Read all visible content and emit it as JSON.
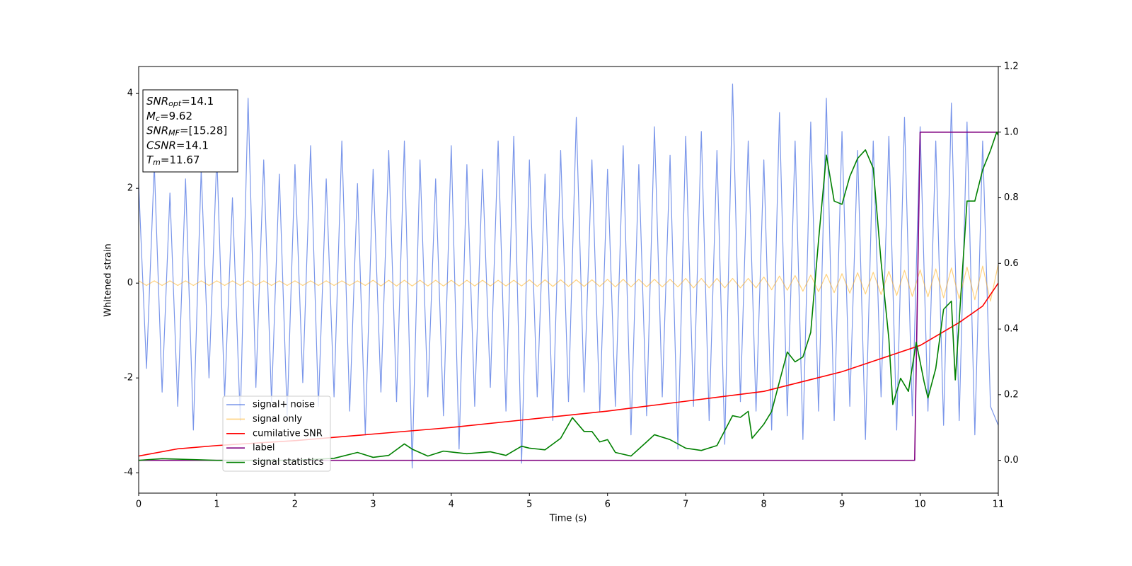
{
  "chart_data": {
    "type": "line",
    "xlabel": "Time (s)",
    "ylabel": "Whitened strain",
    "xlim": [
      0,
      11
    ],
    "ylim": [
      -4.43,
      4.57
    ],
    "y2lim": [
      -0.1,
      1.2
    ],
    "xticks": [
      0,
      1,
      2,
      3,
      4,
      5,
      6,
      7,
      8,
      9,
      10,
      11
    ],
    "yticks": [
      -4,
      -2,
      0,
      2,
      4
    ],
    "y2ticks": [
      {
        "value": 0,
        "label": "0.0"
      },
      0.2,
      0.4,
      0.6,
      0.8,
      {
        "value": 1,
        "label": "1.0"
      },
      1.2
    ],
    "legend": "lower left",
    "annotation": [
      {
        "main": "SNR",
        "sub": "opt",
        "rest": "=14.1"
      },
      {
        "main": "M",
        "sub": "c",
        "rest": "=9.62"
      },
      {
        "main": "SNR",
        "sub": "MF",
        "rest": "=[15.28]"
      },
      {
        "main": "CSNR",
        "rest": "=14.1"
      },
      {
        "main": "T",
        "sub": "m",
        "rest": "=11.67"
      }
    ],
    "x": [
      0,
      0.1,
      0.2,
      0.3,
      0.4,
      0.5,
      0.6,
      0.7,
      0.8,
      0.9,
      1,
      1.1,
      1.2,
      1.3,
      1.4,
      1.5,
      1.6,
      1.7,
      1.8,
      1.9,
      2,
      2.1,
      2.2,
      2.3,
      2.4,
      2.5,
      2.6,
      2.7,
      2.8,
      2.9,
      3,
      3.1,
      3.2,
      3.3,
      3.4,
      3.5,
      3.6,
      3.7,
      3.8,
      3.9,
      4,
      4.1,
      4.2,
      4.3,
      4.4,
      4.5,
      4.6,
      4.7,
      4.8,
      4.9,
      5,
      5.1,
      5.2,
      5.3,
      5.4,
      5.5,
      5.6,
      5.7,
      5.8,
      5.9,
      6,
      6.1,
      6.2,
      6.3,
      6.4,
      6.5,
      6.6,
      6.7,
      6.8,
      6.9,
      7,
      7.1,
      7.2,
      7.3,
      7.4,
      7.5,
      7.6,
      7.7,
      7.8,
      7.9,
      8,
      8.1,
      8.2,
      8.3,
      8.4,
      8.5,
      8.6,
      8.7,
      8.8,
      8.9,
      9,
      9.1,
      9.2,
      9.3,
      9.4,
      9.5,
      9.6,
      9.7,
      9.8,
      9.9,
      10,
      10.1,
      10.2,
      10.3,
      10.4,
      10.5,
      10.6,
      10.7,
      10.8,
      10.9,
      11
    ],
    "series": [
      {
        "name": "signal+ noise",
        "color": "#4169e1",
        "opacity": 0.7,
        "values": [
          2.1,
          -1.8,
          2.5,
          -2.3,
          1.9,
          -2.6,
          2.2,
          -3.1,
          2.4,
          -2.0,
          2.7,
          -2.4,
          1.8,
          -2.9,
          3.9,
          -2.2,
          2.6,
          -2.5,
          2.3,
          -2.8,
          2.5,
          -2.1,
          2.9,
          -2.6,
          2.2,
          -2.4,
          3.0,
          -2.7,
          2.1,
          -3.2,
          2.4,
          -2.3,
          2.8,
          -2.5,
          3.0,
          -3.9,
          2.6,
          -2.4,
          2.2,
          -2.8,
          2.9,
          -3.5,
          2.5,
          -2.6,
          2.4,
          -2.2,
          3.0,
          -2.7,
          3.1,
          -3.8,
          2.6,
          -2.4,
          2.3,
          -2.9,
          2.8,
          -2.5,
          3.5,
          -2.3,
          2.6,
          -2.7,
          2.4,
          -2.6,
          2.9,
          -3.2,
          2.5,
          -2.8,
          3.3,
          -2.4,
          2.7,
          -3.5,
          3.1,
          -2.6,
          3.2,
          -2.9,
          2.8,
          -3.4,
          4.2,
          -2.5,
          3.0,
          -2.7,
          2.6,
          -3.1,
          3.6,
          -2.8,
          3.0,
          -3.3,
          3.4,
          -2.7,
          3.9,
          -2.9,
          3.2,
          -2.6,
          2.8,
          -3.3,
          3.0,
          -2.4,
          3.1,
          -3.1,
          3.5,
          -2.8,
          3.3,
          -2.7,
          3.0,
          -3.0,
          3.8,
          -2.9,
          3.4,
          -3.2,
          3.0,
          -2.6,
          -3.0
        ]
      },
      {
        "name": "signal only",
        "color": "#ffa500",
        "opacity": 0.5,
        "values": [
          0.05,
          -0.05,
          0.05,
          -0.05,
          0.05,
          -0.05,
          0.05,
          -0.05,
          0.05,
          -0.05,
          0.05,
          -0.05,
          0.05,
          -0.05,
          0.05,
          -0.05,
          0.05,
          -0.05,
          0.05,
          -0.05,
          0.05,
          -0.05,
          0.05,
          -0.05,
          0.05,
          -0.05,
          0.05,
          -0.05,
          0.05,
          -0.05,
          0.06,
          -0.06,
          0.06,
          -0.06,
          0.06,
          -0.06,
          0.06,
          -0.06,
          0.06,
          -0.06,
          0.06,
          -0.06,
          0.06,
          -0.06,
          0.06,
          -0.06,
          0.06,
          -0.06,
          0.06,
          -0.06,
          0.07,
          -0.07,
          0.07,
          -0.07,
          0.07,
          -0.07,
          0.07,
          -0.07,
          0.07,
          -0.07,
          0.08,
          -0.08,
          0.08,
          -0.08,
          0.08,
          -0.08,
          0.08,
          -0.08,
          0.08,
          -0.08,
          0.1,
          -0.1,
          0.1,
          -0.1,
          0.1,
          -0.1,
          0.1,
          -0.1,
          0.1,
          -0.1,
          0.13,
          -0.14,
          0.15,
          -0.15,
          0.16,
          -0.17,
          0.17,
          -0.18,
          0.19,
          -0.2,
          0.2,
          -0.21,
          0.22,
          -0.23,
          0.23,
          -0.24,
          0.25,
          -0.26,
          0.27,
          -0.28,
          0.28,
          -0.29,
          0.3,
          -0.31,
          0.32,
          -0.33,
          0.34,
          -0.35,
          0.36,
          -0.38,
          0.4
        ]
      },
      {
        "name": "cumilative SNR",
        "color": "#ff0000",
        "axis": "y2",
        "x": [
          0,
          0.5,
          1,
          2,
          3,
          4,
          5,
          6,
          7,
          8,
          9,
          9.5,
          10,
          10.5,
          10.8,
          11
        ],
        "values": [
          0.013,
          0.035,
          0.045,
          0.06,
          0.08,
          0.1,
          0.125,
          0.15,
          0.18,
          0.21,
          0.27,
          0.31,
          0.35,
          0.42,
          0.47,
          0.54
        ]
      },
      {
        "name": "label",
        "color": "#800080",
        "axis": "y2",
        "x": [
          0,
          9.93,
          10,
          11
        ],
        "values": [
          0,
          0,
          1,
          1
        ]
      },
      {
        "name": "signal statistics",
        "color": "#008000",
        "axis": "y2",
        "x": [
          0,
          0.3,
          1,
          2,
          2.5,
          2.8,
          3,
          3.2,
          3.4,
          3.5,
          3.7,
          3.9,
          4.2,
          4.5,
          4.7,
          4.9,
          5,
          5.2,
          5.4,
          5.55,
          5.7,
          5.8,
          5.9,
          6,
          6.1,
          6.3,
          6.5,
          6.6,
          6.8,
          7,
          7.2,
          7.4,
          7.6,
          7.7,
          7.8,
          7.85,
          8,
          8.1,
          8.2,
          8.3,
          8.4,
          8.5,
          8.6,
          8.7,
          8.8,
          8.9,
          9,
          9.1,
          9.2,
          9.3,
          9.4,
          9.5,
          9.6,
          9.65,
          9.75,
          9.85,
          9.95,
          10.05,
          10.1,
          10.2,
          10.3,
          10.4,
          10.45,
          10.6,
          10.7,
          10.8,
          10.9,
          10.98,
          11
        ],
        "values": [
          0,
          0.005,
          0,
          0,
          0.006,
          0.024,
          0.009,
          0.015,
          0.05,
          0.034,
          0.013,
          0.028,
          0.02,
          0.026,
          0.015,
          0.043,
          0.037,
          0.032,
          0.067,
          0.13,
          0.088,
          0.088,
          0.056,
          0.063,
          0.024,
          0.013,
          0.056,
          0.078,
          0.063,
          0.037,
          0.03,
          0.045,
          0.136,
          0.131,
          0.149,
          0.067,
          0.11,
          0.149,
          0.24,
          0.33,
          0.3,
          0.315,
          0.39,
          0.67,
          0.93,
          0.79,
          0.78,
          0.865,
          0.92,
          0.946,
          0.89,
          0.605,
          0.37,
          0.17,
          0.25,
          0.21,
          0.36,
          0.24,
          0.19,
          0.28,
          0.46,
          0.485,
          0.245,
          0.79,
          0.79,
          0.885,
          0.944,
          1.0,
          0.99
        ]
      }
    ]
  }
}
